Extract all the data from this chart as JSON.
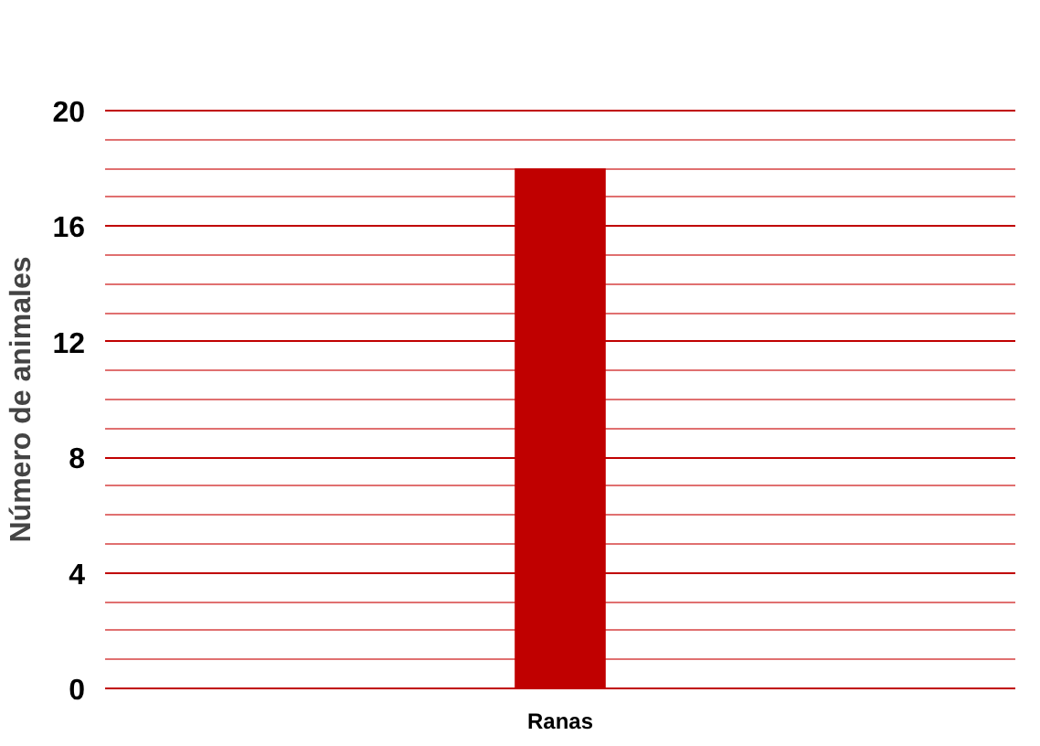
{
  "chart_data": {
    "type": "bar",
    "ylabel": "Número de animales",
    "categories": [
      "Ranas"
    ],
    "values": [
      18
    ],
    "color": "#c00000",
    "ylim": [
      0,
      20
    ],
    "grid": "y",
    "yticks": [
      0,
      {
        "value": 1,
        "label": null
      },
      {
        "value": 2,
        "label": null
      },
      {
        "value": 3,
        "label": null
      },
      4,
      {
        "value": 5,
        "label": null
      },
      {
        "value": 6,
        "label": null
      },
      {
        "value": 7,
        "label": null
      },
      8,
      {
        "value": 9,
        "label": null
      },
      {
        "value": 10,
        "label": null
      },
      {
        "value": 11,
        "label": null
      },
      12,
      {
        "value": 13,
        "label": null
      },
      {
        "value": 14,
        "label": null
      },
      {
        "value": 15,
        "label": null
      },
      16,
      {
        "value": 17,
        "label": null
      },
      {
        "value": 18,
        "label": null
      },
      {
        "value": 19,
        "label": null
      },
      20
    ]
  }
}
